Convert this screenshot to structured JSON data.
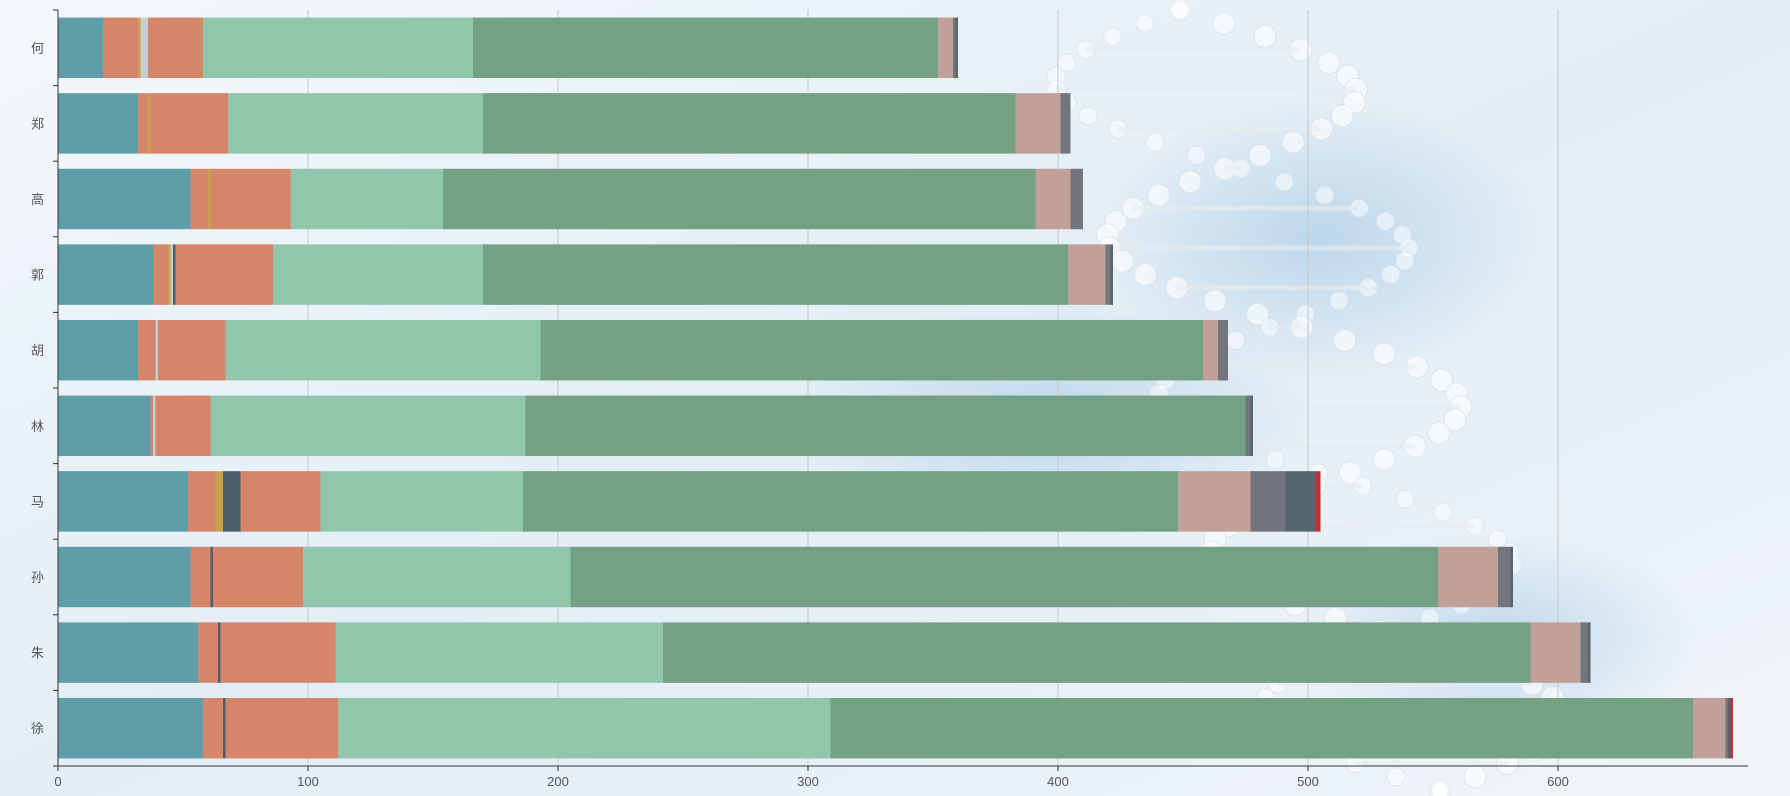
{
  "chart_data": {
    "type": "bar",
    "orientation": "horizontal",
    "stacked": true,
    "title": "",
    "xlabel": "",
    "ylabel": "",
    "xlim": [
      0,
      676
    ],
    "xticks": [
      0,
      100,
      200,
      300,
      400,
      500,
      600
    ],
    "grid": true,
    "legend": "none",
    "categories": [
      "徐",
      "朱",
      "孙",
      "马",
      "林",
      "胡",
      "郭",
      "高",
      "郑",
      "何"
    ],
    "colors": [
      "#5f9ea8",
      "#d4856a",
      "#c8a24a",
      "#c4ccd4",
      "#4d5f6a",
      "#d4856a",
      "#91c6ad",
      "#74a084",
      "#c0a098",
      "#72767c",
      "#56666e",
      "#c03030"
    ],
    "series": [
      {
        "values": [
          58,
          56,
          53,
          52,
          37,
          32,
          38,
          53,
          32,
          18
        ]
      },
      {
        "values": [
          8,
          8,
          8,
          11,
          1,
          7,
          6,
          7,
          4,
          14
        ]
      },
      {
        "values": [
          0,
          0,
          0,
          3,
          0,
          0,
          1,
          1,
          1,
          1
        ]
      },
      {
        "values": [
          0,
          0,
          0,
          0,
          1,
          1,
          1,
          0,
          0,
          3
        ]
      },
      {
        "values": [
          1,
          1,
          1,
          7,
          0,
          0,
          1,
          0,
          0,
          0
        ]
      },
      {
        "values": [
          45,
          46,
          36,
          32,
          22,
          27,
          39,
          32,
          31,
          22
        ]
      },
      {
        "values": [
          197,
          131,
          107,
          81,
          126,
          126,
          84,
          61,
          102,
          108
        ]
      },
      {
        "values": [
          345,
          347,
          347,
          262,
          288,
          265,
          234,
          237,
          213,
          186
        ]
      },
      {
        "values": [
          13,
          20,
          24,
          29,
          0,
          6,
          15,
          14,
          18,
          6
        ]
      },
      {
        "values": [
          1,
          3,
          5,
          14,
          2,
          4,
          2,
          5,
          4,
          1
        ]
      },
      {
        "values": [
          1,
          1,
          1,
          12,
          1,
          0,
          1,
          0,
          0,
          1
        ]
      },
      {
        "values": [
          1,
          0,
          0,
          2,
          0,
          0,
          0,
          0,
          0,
          0
        ]
      }
    ]
  }
}
